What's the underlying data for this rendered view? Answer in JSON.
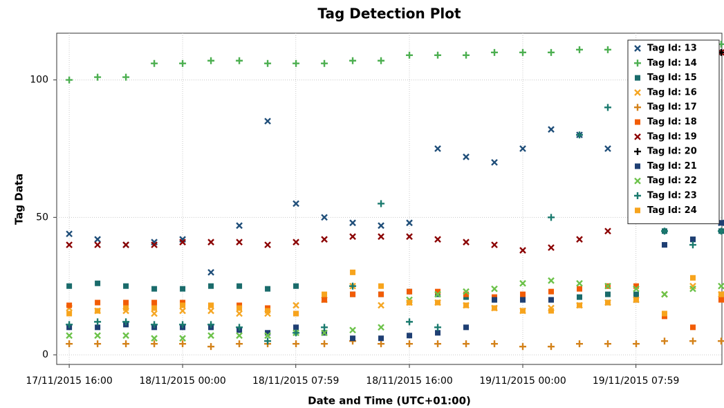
{
  "chart_data": {
    "type": "scatter",
    "title": "Tag Detection Plot",
    "x_label": "Date and Time (UTC+01:00)",
    "y_label": "Tag Data",
    "x": [
      "2015-11-17T16:00",
      "2015-11-17T18:00",
      "2015-11-17T20:00",
      "2015-11-17T22:00",
      "2015-11-18T00:00",
      "2015-11-18T02:00",
      "2015-11-18T04:00",
      "2015-11-18T06:00",
      "2015-11-18T08:00",
      "2015-11-18T10:00",
      "2015-11-18T12:00",
      "2015-11-18T14:00",
      "2015-11-18T16:00",
      "2015-11-18T18:00",
      "2015-11-18T20:00",
      "2015-11-18T22:00",
      "2015-11-19T00:00",
      "2015-11-19T02:00",
      "2015-11-19T04:00",
      "2015-11-19T06:00",
      "2015-11-19T08:00",
      "2015-11-19T10:00",
      "2015-11-19T12:00",
      "2015-11-19T14:00"
    ],
    "xlim": [
      "2015-11-17T15:07",
      "2015-11-19T14:03"
    ],
    "xticks": [
      {
        "value": "2015-11-17T16:00",
        "label": "17/11/2015 16:00"
      },
      {
        "value": "2015-11-18T00:00",
        "label": "18/11/2015 00:00"
      },
      {
        "value": "2015-11-18T07:59",
        "label": "18/11/2015 07:59"
      },
      {
        "value": "2015-11-18T16:00",
        "label": "18/11/2015 16:00"
      },
      {
        "value": "2015-11-19T00:00",
        "label": "19/11/2015 00:00"
      },
      {
        "value": "2015-11-19T07:59",
        "label": "19/11/2015 07:59"
      }
    ],
    "ylim": [
      -3.5,
      117
    ],
    "yticks": [
      0,
      50,
      100
    ],
    "grid": true,
    "legend": "upper right",
    "series": [
      {
        "name": "Tag Id: 13",
        "color": "#1f4e79",
        "marker": "x",
        "values": [
          44,
          42,
          40,
          41,
          42,
          30,
          47,
          85,
          55,
          50,
          48,
          47,
          48,
          75,
          72,
          70,
          75,
          82,
          80,
          75,
          65,
          60,
          50,
          48
        ]
      },
      {
        "name": "Tag Id: 14",
        "color": "#4caf50",
        "marker": "+",
        "values": [
          100,
          101,
          101,
          106,
          106,
          107,
          107,
          106,
          106,
          106,
          107,
          107,
          109,
          109,
          109,
          110,
          110,
          110,
          111,
          111,
          112,
          112,
          112,
          113
        ]
      },
      {
        "name": "Tag Id: 15",
        "color": "#1a6b6b",
        "marker": "square",
        "values": [
          25,
          26,
          25,
          24,
          24,
          25,
          25,
          24,
          25,
          20,
          22,
          22,
          23,
          22,
          21,
          20,
          20,
          20,
          21,
          22,
          22,
          45,
          42,
          45
        ]
      },
      {
        "name": "Tag Id: 16",
        "color": "#f5a623",
        "marker": "x",
        "values": [
          17,
          16,
          16,
          15,
          16,
          16,
          15,
          15,
          18,
          20,
          25,
          18,
          19,
          19,
          18,
          17,
          16,
          17,
          18,
          19,
          20,
          22,
          25,
          22
        ]
      },
      {
        "name": "Tag Id: 17",
        "color": "#d4821a",
        "marker": "+",
        "values": [
          4,
          4,
          4,
          4,
          4,
          3,
          4,
          4,
          4,
          4,
          5,
          4,
          4,
          4,
          4,
          4,
          3,
          3,
          4,
          4,
          4,
          5,
          5,
          5
        ]
      },
      {
        "name": "Tag Id: 18",
        "color": "#f25c05",
        "marker": "square",
        "values": [
          18,
          19,
          19,
          19,
          19,
          18,
          18,
          17,
          15,
          20,
          22,
          22,
          23,
          23,
          22,
          21,
          22,
          23,
          24,
          25,
          25,
          14,
          10,
          20
        ]
      },
      {
        "name": "Tag Id: 19",
        "color": "#8b0000",
        "marker": "x",
        "values": [
          40,
          40,
          40,
          40,
          41,
          41,
          41,
          40,
          41,
          42,
          43,
          43,
          43,
          42,
          41,
          40,
          38,
          39,
          42,
          45,
          80,
          90,
          105,
          110
        ]
      },
      {
        "name": "Tag Id: 20",
        "color": "#000000",
        "marker": "+",
        "values": [
          null,
          null,
          null,
          null,
          null,
          null,
          null,
          null,
          null,
          null,
          null,
          null,
          null,
          null,
          null,
          null,
          null,
          null,
          null,
          null,
          null,
          null,
          108,
          110
        ]
      },
      {
        "name": "Tag Id: 21",
        "color": "#1f3f73",
        "marker": "square",
        "values": [
          10,
          10,
          11,
          10,
          10,
          10,
          9,
          8,
          10,
          8,
          6,
          6,
          7,
          8,
          10,
          20,
          20,
          20,
          18,
          19,
          20,
          40,
          42,
          48
        ]
      },
      {
        "name": "Tag Id: 22",
        "color": "#6cc24a",
        "marker": "x",
        "values": [
          7,
          7,
          7,
          6,
          6,
          7,
          7,
          7,
          8,
          8,
          9,
          10,
          20,
          22,
          23,
          24,
          26,
          27,
          26,
          25,
          24,
          22,
          24,
          25
        ]
      },
      {
        "name": "Tag Id: 23",
        "color": "#1a7a6e",
        "marker": "+",
        "values": [
          11,
          12,
          12,
          11,
          11,
          11,
          10,
          5,
          8,
          10,
          25,
          55,
          12,
          10,
          null,
          null,
          null,
          50,
          80,
          90,
          60,
          45,
          40,
          45
        ]
      },
      {
        "name": "Tag Id: 24",
        "color": "#f7a41d",
        "marker": "square",
        "values": [
          15,
          16,
          17,
          17,
          18,
          18,
          17,
          16,
          15,
          22,
          30,
          25,
          19,
          19,
          18,
          17,
          16,
          16,
          18,
          19,
          20,
          15,
          28,
          22
        ]
      }
    ]
  }
}
